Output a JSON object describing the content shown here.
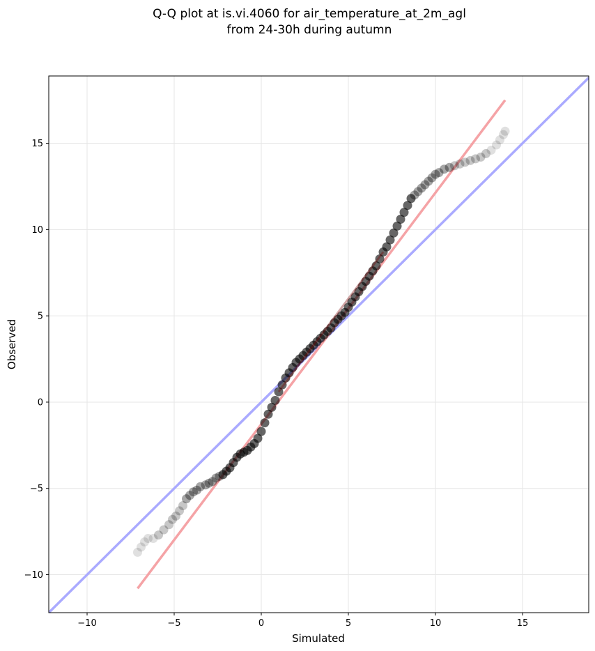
{
  "chart_data": {
    "type": "scatter",
    "title": [
      "Q-Q plot at is.vi.4060 for air_temperature_at_2m_agl",
      "from 24-30h during autumn"
    ],
    "xlabel": "Simulated",
    "ylabel": "Observed",
    "xlim": [
      -12.2,
      18.8
    ],
    "ylim": [
      -12.2,
      18.9
    ],
    "xticks": [
      -10,
      -5,
      0,
      5,
      10,
      15
    ],
    "yticks": [
      -10,
      -5,
      0,
      5,
      10,
      15
    ],
    "xtick_labels": [
      "−10",
      "−5",
      "0",
      "5",
      "10",
      "15"
    ],
    "ytick_labels": [
      "−10",
      "−5",
      "0",
      "5",
      "10",
      "15"
    ],
    "grid": true,
    "lines": [
      {
        "name": "",
        "color": "#aaaaff",
        "x": [
          -12.2,
          18.8
        ],
        "y": [
          -12.2,
          18.8
        ]
      },
      {
        "name": "",
        "color": "#f5a3a6",
        "x": [
          -7.1,
          14.0
        ],
        "y": [
          -10.8,
          17.5
        ]
      }
    ],
    "points": {
      "color": "#000000",
      "x": [
        -7.1,
        -6.9,
        -6.7,
        -6.5,
        -6.2,
        -5.9,
        -5.6,
        -5.3,
        -5.1,
        -4.9,
        -4.7,
        -4.5,
        -4.3,
        -4.1,
        -3.9,
        -3.7,
        -3.5,
        -3.2,
        -3.0,
        -2.8,
        -2.6,
        -2.4,
        -2.2,
        -2.0,
        -1.8,
        -1.6,
        -1.4,
        -1.2,
        -1.0,
        -0.8,
        -0.6,
        -0.4,
        -0.2,
        0.0,
        0.2,
        0.4,
        0.6,
        0.8,
        1.0,
        1.2,
        1.4,
        1.6,
        1.8,
        2.0,
        2.2,
        2.4,
        2.6,
        2.8,
        3.0,
        3.2,
        3.4,
        3.6,
        3.8,
        4.0,
        4.2,
        4.4,
        4.6,
        4.8,
        5.0,
        5.2,
        5.4,
        5.6,
        5.8,
        6.0,
        6.2,
        6.4,
        6.6,
        6.8,
        7.0,
        7.2,
        7.4,
        7.6,
        7.8,
        8.0,
        8.2,
        8.4,
        8.6,
        8.8,
        9.0,
        9.2,
        9.4,
        9.6,
        9.8,
        10.0,
        10.2,
        10.5,
        10.8,
        11.1,
        11.4,
        11.7,
        12.0,
        12.3,
        12.6,
        12.9,
        13.2,
        13.5,
        13.7,
        13.9,
        14.0
      ],
      "y": [
        -8.7,
        -8.4,
        -8.1,
        -7.9,
        -7.9,
        -7.7,
        -7.4,
        -7.1,
        -6.8,
        -6.6,
        -6.3,
        -6.0,
        -5.6,
        -5.4,
        -5.2,
        -5.1,
        -4.9,
        -4.8,
        -4.7,
        -4.6,
        -4.4,
        -4.3,
        -4.2,
        -4.0,
        -3.8,
        -3.5,
        -3.2,
        -3.0,
        -2.9,
        -2.8,
        -2.6,
        -2.4,
        -2.1,
        -1.7,
        -1.2,
        -0.7,
        -0.3,
        0.1,
        0.6,
        1.0,
        1.4,
        1.7,
        2.0,
        2.3,
        2.5,
        2.7,
        2.9,
        3.1,
        3.3,
        3.5,
        3.7,
        3.9,
        4.1,
        4.3,
        4.6,
        4.8,
        5.0,
        5.2,
        5.5,
        5.8,
        6.1,
        6.4,
        6.7,
        7.0,
        7.3,
        7.6,
        7.9,
        8.3,
        8.7,
        9.0,
        9.4,
        9.8,
        10.2,
        10.6,
        11.0,
        11.4,
        11.8,
        12.0,
        12.2,
        12.4,
        12.6,
        12.8,
        13.0,
        13.2,
        13.3,
        13.5,
        13.6,
        13.7,
        13.8,
        13.9,
        14.0,
        14.1,
        14.2,
        14.4,
        14.6,
        14.9,
        15.2,
        15.5,
        15.7
      ]
    }
  }
}
